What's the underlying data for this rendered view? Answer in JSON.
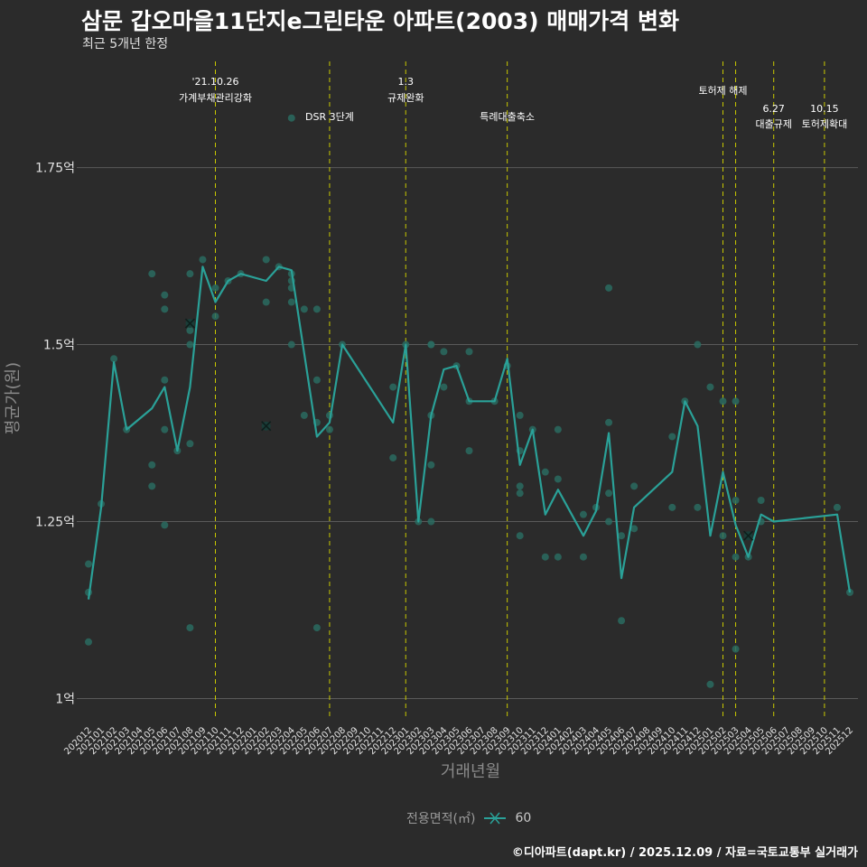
{
  "title": "삼문 갑오마을11단지e그린타운 아파트(2003) 매매가격 변화",
  "subtitle": "최근 5개년 한정",
  "caption": "©디아파트(dapt.kr) / 2025.12.09 / 자료=국토교통부 실거래가",
  "legend": {
    "title": "전용면적(㎡)",
    "label": "60"
  },
  "colors": {
    "line": "#2aa198",
    "point": "#2a6b60",
    "grid": "#5a5a5a",
    "vline": "#c8c800",
    "bg": "#2b2b2b"
  },
  "chart_data": {
    "type": "line",
    "xlabel": "거래년월",
    "ylabel": "평균가(원)",
    "ylim": [
      0.97,
      1.9
    ],
    "y_ticks": [
      {
        "v": 1.0,
        "label": "1억"
      },
      {
        "v": 1.25,
        "label": "1.25억"
      },
      {
        "v": 1.5,
        "label": "1.5억"
      },
      {
        "v": 1.75,
        "label": "1.75억"
      }
    ],
    "categories": [
      "202012",
      "202101",
      "202102",
      "202103",
      "202104",
      "202105",
      "202106",
      "202107",
      "202108",
      "202109",
      "202110",
      "202111",
      "202112",
      "202201",
      "202202",
      "202203",
      "202204",
      "202205",
      "202206",
      "202207",
      "202208",
      "202209",
      "202210",
      "202211",
      "202212",
      "202301",
      "202302",
      "202303",
      "202304",
      "202305",
      "202306",
      "202307",
      "202308",
      "202309",
      "202310",
      "202311",
      "202312",
      "202401",
      "202402",
      "202403",
      "202404",
      "202405",
      "202406",
      "202407",
      "202408",
      "202409",
      "202410",
      "202411",
      "202412",
      "202501",
      "202502",
      "202503",
      "202504",
      "202505",
      "202506",
      "202507",
      "202508",
      "202509",
      "202510",
      "202511",
      "202512"
    ],
    "series": [
      {
        "name": "60",
        "line": [
          [
            0,
            1.14
          ],
          [
            1,
            1.27
          ],
          [
            2,
            1.475
          ],
          [
            3,
            1.38
          ],
          [
            5,
            1.41
          ],
          [
            6,
            1.44
          ],
          [
            7,
            1.35
          ],
          [
            8,
            1.44
          ],
          [
            9,
            1.61
          ],
          [
            10,
            1.56
          ],
          [
            11,
            1.59
          ],
          [
            12,
            1.6
          ],
          [
            14,
            1.59
          ],
          [
            15,
            1.61
          ],
          [
            16,
            1.605
          ],
          [
            18,
            1.37
          ],
          [
            19,
            1.39
          ],
          [
            20,
            1.5
          ],
          [
            24,
            1.39
          ],
          [
            25,
            1.5
          ],
          [
            26,
            1.25
          ],
          [
            27,
            1.4
          ],
          [
            28,
            1.465
          ],
          [
            29,
            1.47
          ],
          [
            30,
            1.42
          ],
          [
            32,
            1.42
          ],
          [
            33,
            1.48
          ],
          [
            34,
            1.33
          ],
          [
            35,
            1.38
          ],
          [
            36,
            1.26
          ],
          [
            37,
            1.295
          ],
          [
            39,
            1.23
          ],
          [
            40,
            1.265
          ],
          [
            41,
            1.375
          ],
          [
            42,
            1.17
          ],
          [
            43,
            1.27
          ],
          [
            46,
            1.32
          ],
          [
            47,
            1.42
          ],
          [
            48,
            1.385
          ],
          [
            49,
            1.23
          ],
          [
            50,
            1.32
          ],
          [
            51,
            1.245
          ],
          [
            52,
            1.2
          ],
          [
            53,
            1.26
          ],
          [
            54,
            1.25
          ],
          [
            59,
            1.26
          ],
          [
            60,
            1.15
          ]
        ],
        "points": [
          [
            0,
            1.19
          ],
          [
            0,
            1.15
          ],
          [
            0,
            1.08
          ],
          [
            1,
            1.275
          ],
          [
            2,
            1.48
          ],
          [
            3,
            1.38
          ],
          [
            5,
            1.6
          ],
          [
            5,
            1.33
          ],
          [
            5,
            1.3
          ],
          [
            6,
            1.57
          ],
          [
            6,
            1.55
          ],
          [
            6,
            1.45
          ],
          [
            6,
            1.38
          ],
          [
            6,
            1.245
          ],
          [
            7,
            1.35
          ],
          [
            8,
            1.6
          ],
          [
            8,
            1.52
          ],
          [
            8,
            1.5
          ],
          [
            8,
            1.36
          ],
          [
            8,
            1.1
          ],
          [
            9,
            1.62
          ],
          [
            10,
            1.58
          ],
          [
            10,
            1.54
          ],
          [
            11,
            1.59
          ],
          [
            12,
            1.6
          ],
          [
            14,
            1.62
          ],
          [
            14,
            1.56
          ],
          [
            15,
            1.61
          ],
          [
            16,
            1.82
          ],
          [
            16,
            1.6
          ],
          [
            16,
            1.59
          ],
          [
            16,
            1.58
          ],
          [
            16,
            1.56
          ],
          [
            16,
            1.5
          ],
          [
            17,
            1.55
          ],
          [
            17,
            1.4
          ],
          [
            18,
            1.55
          ],
          [
            18,
            1.45
          ],
          [
            18,
            1.39
          ],
          [
            18,
            1.1
          ],
          [
            19,
            1.4
          ],
          [
            19,
            1.38
          ],
          [
            20,
            1.5
          ],
          [
            24,
            1.44
          ],
          [
            24,
            1.34
          ],
          [
            25,
            1.5
          ],
          [
            26,
            1.25
          ],
          [
            27,
            1.5
          ],
          [
            27,
            1.5
          ],
          [
            27,
            1.4
          ],
          [
            27,
            1.33
          ],
          [
            27,
            1.25
          ],
          [
            28,
            1.49
          ],
          [
            28,
            1.44
          ],
          [
            29,
            1.47
          ],
          [
            30,
            1.49
          ],
          [
            30,
            1.42
          ],
          [
            30,
            1.35
          ],
          [
            32,
            1.42
          ],
          [
            33,
            1.47
          ],
          [
            34,
            1.4
          ],
          [
            34,
            1.35
          ],
          [
            34,
            1.3
          ],
          [
            34,
            1.29
          ],
          [
            34,
            1.23
          ],
          [
            35,
            1.38
          ],
          [
            36,
            1.32
          ],
          [
            36,
            1.2
          ],
          [
            37,
            1.38
          ],
          [
            37,
            1.31
          ],
          [
            37,
            1.2
          ],
          [
            39,
            1.26
          ],
          [
            39,
            1.2
          ],
          [
            40,
            1.27
          ],
          [
            41,
            1.58
          ],
          [
            41,
            1.39
          ],
          [
            41,
            1.29
          ],
          [
            41,
            1.25
          ],
          [
            42,
            1.23
          ],
          [
            42,
            1.11
          ],
          [
            43,
            1.3
          ],
          [
            43,
            1.24
          ],
          [
            46,
            1.37
          ],
          [
            46,
            1.27
          ],
          [
            47,
            1.42
          ],
          [
            48,
            1.5
          ],
          [
            48,
            1.27
          ],
          [
            49,
            1.44
          ],
          [
            49,
            1.02
          ],
          [
            50,
            1.42
          ],
          [
            50,
            1.23
          ],
          [
            51,
            1.42
          ],
          [
            51,
            1.28
          ],
          [
            51,
            1.2
          ],
          [
            51,
            1.07
          ],
          [
            52,
            1.2
          ],
          [
            53,
            1.28
          ],
          [
            53,
            1.25
          ],
          [
            59,
            1.27
          ],
          [
            60,
            1.15
          ]
        ],
        "markers": [
          [
            8,
            1.53
          ],
          [
            14,
            1.385
          ],
          [
            52,
            1.23
          ]
        ]
      }
    ],
    "events": [
      {
        "x": 10.0,
        "date": "'21.10.26",
        "label": "가계부채관리강화",
        "row": 1
      },
      {
        "x": 19.0,
        "date": "",
        "label": "DSR 3단계",
        "row": 2
      },
      {
        "x": 25.0,
        "date": "1.3",
        "label": "규제완화",
        "row": 1
      },
      {
        "x": 33.0,
        "date": "",
        "label": "특례대출축소",
        "row": 2
      },
      {
        "x": 50.0,
        "date": "",
        "label": "토허제 해제",
        "row": 1
      },
      {
        "x": 51.0,
        "date": "",
        "label": "",
        "row": 0
      },
      {
        "x": 54.0,
        "date": "6.27",
        "label": "대출규제",
        "row": 2
      },
      {
        "x": 58.0,
        "date": "10.15",
        "label": "토허제확대",
        "row": 2
      }
    ]
  }
}
